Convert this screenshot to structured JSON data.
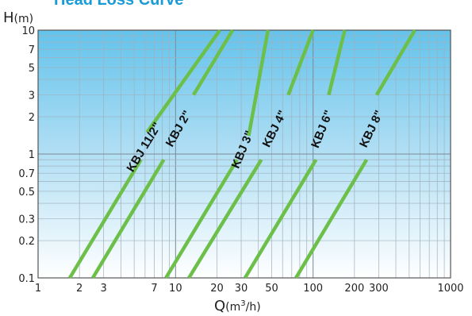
{
  "title": "Head Loss Curve",
  "chart_data": {
    "type": "line",
    "title": "Head Loss Curve",
    "xlabel_main": "Q",
    "xlabel_unit_a": "(m",
    "xlabel_unit_sup": "3",
    "xlabel_unit_b": "/h)",
    "ylabel_main": "H",
    "ylabel_unit": "(m)",
    "x_scale": "log",
    "y_scale": "log",
    "xlim": [
      1,
      1000
    ],
    "ylim": [
      0.1,
      10
    ],
    "x_ticks": [
      1,
      2,
      3,
      7,
      10,
      20,
      30,
      50,
      100,
      200,
      300,
      1000
    ],
    "x_tick_labels": [
      "1",
      "2",
      "3",
      "7",
      "10",
      "20",
      "30",
      "50",
      "100",
      "200",
      "300",
      "1000"
    ],
    "y_ticks": [
      0.1,
      0.2,
      0.3,
      0.5,
      0.7,
      1,
      2,
      3,
      5,
      7,
      10
    ],
    "y_tick_labels": [
      "0.1",
      "0.2",
      "0.3",
      "0.5",
      "0.7",
      "1",
      "2",
      "3",
      "5",
      "7",
      "10"
    ],
    "grid": true,
    "background": "gradient sky-blue to white",
    "line_color": "#6cc04a",
    "series": [
      {
        "name": "KBJ 11/2\"",
        "x": [
          1.7,
          5.6,
          6.2,
          21
        ],
        "y": [
          0.1,
          0.9,
          1.5,
          10
        ]
      },
      {
        "name": "KBJ 2\"",
        "x": [
          2.5,
          8.2,
          13.5,
          26
        ],
        "y": [
          0.1,
          0.9,
          3,
          10
        ]
      },
      {
        "name": "KBJ 3\"",
        "x": [
          8.5,
          28,
          34,
          47
        ],
        "y": [
          0.1,
          0.9,
          1.4,
          10
        ]
      },
      {
        "name": "KBJ 4\"",
        "x": [
          12.5,
          42,
          66,
          100
        ],
        "y": [
          0.1,
          0.9,
          3,
          10
        ]
      },
      {
        "name": "KBJ 6\"",
        "x": [
          32,
          105,
          130,
          170
        ],
        "y": [
          0.1,
          0.9,
          3,
          10
        ]
      },
      {
        "name": "KBJ 8\"",
        "x": [
          75,
          245,
          290,
          550
        ],
        "y": [
          0.1,
          0.9,
          3,
          10
        ]
      }
    ]
  }
}
